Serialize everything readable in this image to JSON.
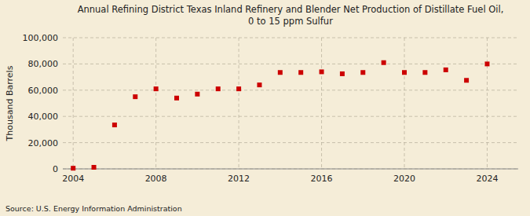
{
  "chart_data": {
    "type": "scatter",
    "title": "Annual Refining District Texas Inland Refinery and Blender Net Production of Distillate Fuel Oil,\n0 to 15 ppm Sulfur",
    "y_label": "Thousand Barrels",
    "source": "Source: U.S. Energy Information Administration",
    "x": [
      2004,
      2005,
      2006,
      2007,
      2008,
      2009,
      2010,
      2011,
      2012,
      2013,
      2014,
      2015,
      2016,
      2017,
      2018,
      2019,
      2020,
      2021,
      2022,
      2023,
      2024
    ],
    "values": [
      500,
      1200,
      33500,
      55000,
      61000,
      54000,
      57000,
      61000,
      61000,
      64000,
      73500,
      73500,
      74000,
      72500,
      73500,
      81000,
      73500,
      73500,
      75500,
      67500,
      80000
    ],
    "color": "#cc0000",
    "marker": "square",
    "xlim": [
      2003.5,
      2025.5
    ],
    "ylim": [
      0,
      100000
    ],
    "xticks": [
      2004,
      2008,
      2012,
      2016,
      2020,
      2024
    ],
    "yticks": [
      0,
      {
        "value": 20000,
        "label": "20,000"
      },
      {
        "value": 40000,
        "label": "40,000"
      },
      {
        "value": 60000,
        "label": "60,000"
      },
      {
        "value": 80000,
        "label": "80,000"
      },
      {
        "value": 100000,
        "label": "100,000"
      }
    ],
    "grid": true
  }
}
